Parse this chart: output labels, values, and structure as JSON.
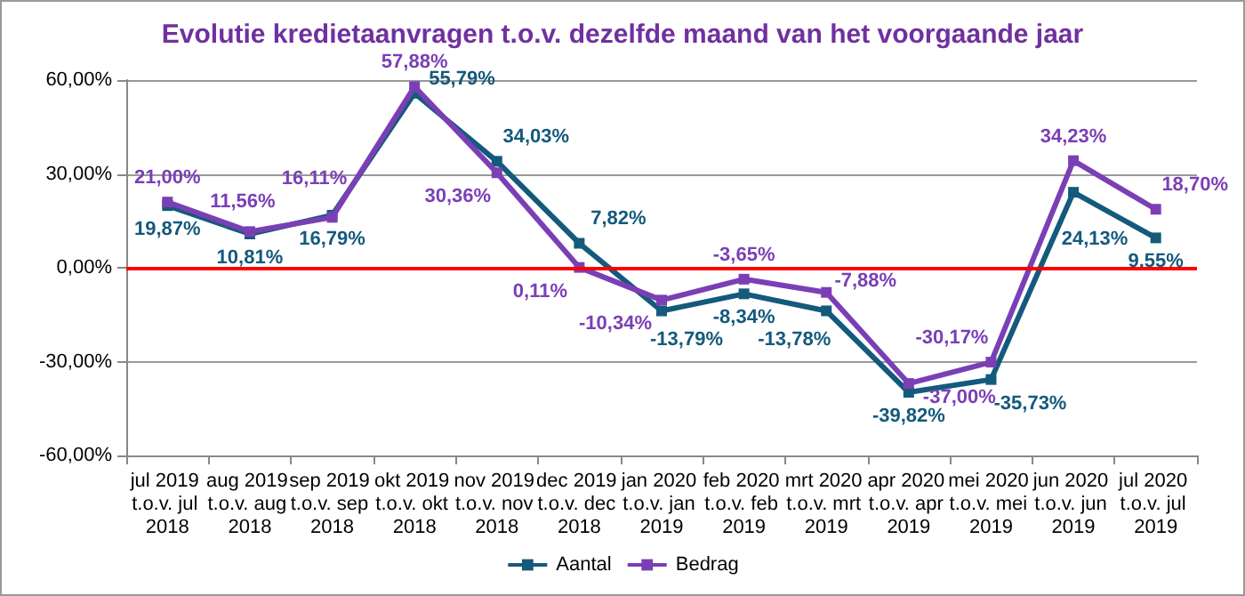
{
  "chart_data": {
    "type": "line",
    "title": "Evolutie kredietaanvragen t.o.v. dezelfde maand van het voorgaande jaar",
    "categories": [
      "jul 2019 t.o.v. jul 2018",
      "aug 2019 t.o.v. aug 2018",
      "sep 2019 t.o.v. sep 2018",
      "okt 2019 t.o.v. okt 2018",
      "nov 2019 t.o.v. nov 2018",
      "dec 2019 t.o.v. dec 2018",
      "jan 2020 t.o.v. jan 2019",
      "feb 2020 t.o.v. feb 2019",
      "mrt 2020 t.o.v. mrt 2019",
      "apr 2020 t.o.v. apr 2019",
      "mei 2020 t.o.v. mei 2019",
      "jun 2020 t.o.v. jun 2019",
      "jul 2020 t.o.v. jul 2019"
    ],
    "series": [
      {
        "name": "Aantal",
        "color": "#145a7c",
        "values": [
          19.87,
          10.81,
          16.79,
          55.79,
          34.03,
          7.82,
          -13.79,
          -8.34,
          -13.78,
          -39.82,
          -35.73,
          24.13,
          9.55
        ],
        "value_labels": [
          "19,87%",
          "10,81%",
          "16,79%",
          "55,79%",
          "34,03%",
          "7,82%",
          "-13,79%",
          "-8,34%",
          "-13,78%",
          "-39,82%",
          "-35,73%",
          "24,13%",
          "9,55%"
        ]
      },
      {
        "name": "Bedrag",
        "color": "#7b3fb5",
        "values": [
          21.0,
          11.56,
          16.11,
          57.88,
          30.36,
          0.11,
          -10.34,
          -3.65,
          -7.88,
          -37.0,
          -30.17,
          34.23,
          18.7
        ],
        "value_labels": [
          "21,00%",
          "11,56%",
          "16,11%",
          "57,88%",
          "30,36%",
          "0,11%",
          "-10,34%",
          "-3,65%",
          "-7,88%",
          "-37,00%",
          "-30,17%",
          "34,23%",
          "18,70%"
        ]
      }
    ],
    "ylim": [
      -60,
      60
    ],
    "yticks": [
      {
        "value": -60,
        "label": "-60,00%"
      },
      {
        "value": -30,
        "label": "-30,00%"
      },
      {
        "value": 0,
        "label": "0,00%"
      },
      {
        "value": 30,
        "label": "30,00%"
      },
      {
        "value": 60,
        "label": "60,00%"
      }
    ],
    "ref_lines": [
      {
        "axis": "y",
        "value": 0,
        "color": "#ff0000"
      }
    ],
    "grid": "y",
    "legend": "bottom",
    "marker": "square",
    "line_style": "solid"
  }
}
